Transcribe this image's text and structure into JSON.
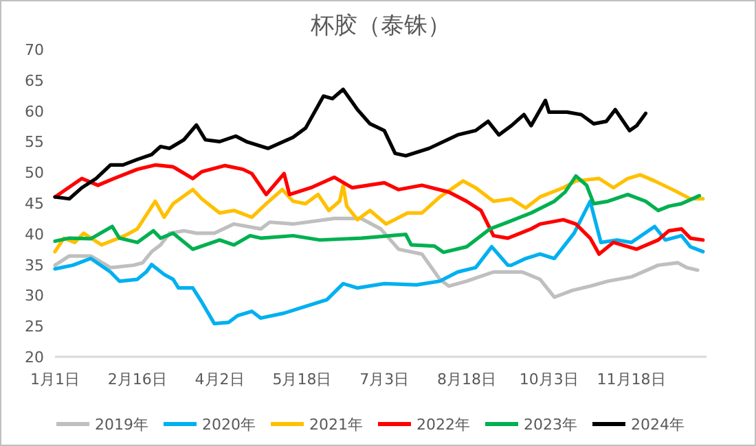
{
  "chart_data": {
    "type": "line",
    "title": "杯胶（泰铢）",
    "xlim": [
      "--01-01",
      "--12-30"
    ],
    "ylim": [
      20,
      70
    ],
    "xticks": [
      {
        "value": "--01-01",
        "label": "1月1日"
      },
      {
        "value": "--02-16",
        "label": "2月16日"
      },
      {
        "value": "--04-02",
        "label": "4月2日"
      },
      {
        "value": "--05-18",
        "label": "5月18日"
      },
      {
        "value": "--07-03",
        "label": "7月3日"
      },
      {
        "value": "--08-18",
        "label": "8月18日"
      },
      {
        "value": "--10-03",
        "label": "10月3日"
      },
      {
        "value": "--11-18",
        "label": "11月18日"
      }
    ],
    "yticks": [
      20,
      25,
      30,
      35,
      40,
      45,
      50,
      55,
      60,
      65,
      70
    ],
    "grid": false,
    "legend": "bottom",
    "marker": "none",
    "line_style": "solid",
    "series": [
      {
        "name": "2019年",
        "color": "#bfbfbf",
        "x": [
          "--01-01",
          "--01-09",
          "--01-21",
          "--02-01",
          "--02-14",
          "--02-19",
          "--02-24",
          "--02-29",
          "--03-05",
          "--03-13",
          "--03-20",
          "--03-30",
          "--04-10",
          "--04-25",
          "--04-30",
          "--05-13",
          "--06-05",
          "--06-20",
          "--07-01",
          "--07-11",
          "--07-24",
          "--08-03",
          "--08-08",
          "--08-18",
          "--09-02",
          "--09-18",
          "--09-28",
          "--10-06",
          "--10-16",
          "--10-26",
          "--11-05",
          "--11-18",
          "--12-03",
          "--12-14",
          "--12-19",
          "--12-25"
        ],
        "values": [
          34.9,
          36.4,
          36.4,
          34.5,
          34.9,
          35.3,
          37.1,
          38.2,
          40.1,
          40.5,
          40.1,
          40.1,
          41.6,
          40.8,
          41.9,
          41.6,
          42.5,
          42.5,
          40.8,
          37.5,
          36.7,
          32.6,
          31.5,
          32.3,
          33.8,
          33.8,
          32.6,
          29.7,
          30.8,
          31.5,
          32.3,
          33,
          34.9,
          35.3,
          34.5,
          34.1
        ]
      },
      {
        "name": "2020年",
        "color": "#00b0f0",
        "x": [
          "--01-01",
          "--01-11",
          "--01-21",
          "--02-01",
          "--02-06",
          "--02-16",
          "--02-21",
          "--02-24",
          "--03-02",
          "--03-07",
          "--03-10",
          "--03-18",
          "--03-23",
          "--03-30",
          "--04-07",
          "--04-12",
          "--04-20",
          "--04-25",
          "--05-08",
          "--05-20",
          "--06-01",
          "--06-10",
          "--06-18",
          "--07-03",
          "--07-21",
          "--08-03",
          "--08-13",
          "--08-23",
          "--09-01",
          "--09-10",
          "--09-12",
          "--09-20",
          "--09-28",
          "--10-06",
          "--10-17",
          "--10-26",
          "--11-01",
          "--11-10",
          "--11-18",
          "--12-01",
          "--12-07",
          "--12-16",
          "--12-21",
          "--12-28"
        ],
        "values": [
          34.3,
          34.9,
          36,
          33.8,
          32.3,
          32.6,
          33.8,
          35,
          33.4,
          32.6,
          31.2,
          31.2,
          28.9,
          25.4,
          25.6,
          26.7,
          27.4,
          26.3,
          27.1,
          28.2,
          29.3,
          31.9,
          31.2,
          31.9,
          31.7,
          32.3,
          33.8,
          34.5,
          37.9,
          34.9,
          34.9,
          36,
          36.7,
          36,
          40.1,
          45.3,
          38.6,
          39,
          38.6,
          41.2,
          39,
          39.7,
          37.9,
          37.1
        ]
      },
      {
        "name": "2021年",
        "color": "#ffc000",
        "x": [
          "--01-01",
          "--01-06",
          "--01-12",
          "--01-17",
          "--01-27",
          "--02-09",
          "--02-16",
          "--02-26",
          "--03-02",
          "--03-07",
          "--03-18",
          "--03-23",
          "--04-02",
          "--04-10",
          "--04-20",
          "--04-28",
          "--05-07",
          "--05-13",
          "--05-20",
          "--05-27",
          "--06-02",
          "--06-08",
          "--06-10",
          "--06-12",
          "--06-18",
          "--06-25",
          "--07-04",
          "--07-16",
          "--07-24",
          "--08-03",
          "--08-16",
          "--08-23",
          "--09-02",
          "--09-12",
          "--09-20",
          "--09-28",
          "--10-11",
          "--10-18",
          "--10-31",
          "--11-08",
          "--11-16",
          "--11-23",
          "--12-01",
          "--12-11",
          "--12-21",
          "--12-28"
        ],
        "values": [
          37.1,
          39.3,
          38.6,
          40.1,
          38.2,
          39.7,
          40.8,
          45.3,
          42.7,
          44.9,
          47.2,
          45.7,
          43.4,
          43.8,
          42.7,
          44.9,
          47.2,
          45.3,
          44.9,
          46.4,
          43.8,
          45.3,
          47.9,
          44.5,
          42.3,
          43.8,
          41.6,
          43.4,
          43.4,
          46,
          48.6,
          47.5,
          45.3,
          45.7,
          44.2,
          46,
          47.5,
          48.6,
          49,
          47.5,
          49,
          49.6,
          48.6,
          47.2,
          45.7,
          45.7
        ]
      },
      {
        "name": "2022年",
        "color": "#ff0000",
        "x": [
          "--01-01",
          "--01-16",
          "--01-25",
          "--02-03",
          "--02-16",
          "--02-26",
          "--03-07",
          "--03-18",
          "--03-23",
          "--04-05",
          "--04-15",
          "--04-20",
          "--04-28",
          "--05-08",
          "--05-11",
          "--05-23",
          "--06-05",
          "--06-15",
          "--07-03",
          "--07-11",
          "--07-24",
          "--08-08",
          "--08-18",
          "--08-26",
          "--09-02",
          "--09-10",
          "--09-23",
          "--09-28",
          "--10-11",
          "--10-18",
          "--10-26",
          "--10-31",
          "--11-08",
          "--11-21",
          "--12-03",
          "--12-09",
          "--12-16",
          "--12-21",
          "--12-28"
        ],
        "values": [
          46,
          49,
          47.9,
          49,
          50.5,
          51.2,
          50.9,
          49,
          50.1,
          51.1,
          50.5,
          49.8,
          46.4,
          49.8,
          46.4,
          47.5,
          49.2,
          47.5,
          48.3,
          47.2,
          47.9,
          46.8,
          45.3,
          43.8,
          39.7,
          39.3,
          40.8,
          41.6,
          42.3,
          41.6,
          39.3,
          36.7,
          38.6,
          37.5,
          39,
          40.5,
          40.8,
          39.3,
          39
        ]
      },
      {
        "name": "2023年",
        "color": "#00b050",
        "x": [
          "--01-01",
          "--01-09",
          "--01-21",
          "--02-02",
          "--02-06",
          "--02-16",
          "--02-25",
          "--02-29",
          "--03-07",
          "--03-18",
          "--04-02",
          "--04-10",
          "--04-19",
          "--04-25",
          "--05-13",
          "--05-28",
          "--06-20",
          "--07-15",
          "--07-18",
          "--07-31",
          "--08-05",
          "--08-18",
          "--08-31",
          "--09-10",
          "--09-23",
          "--10-06",
          "--10-12",
          "--10-18",
          "--10-24",
          "--10-28",
          "--11-05",
          "--11-16",
          "--11-26",
          "--12-03",
          "--12-09",
          "--12-16",
          "--12-26"
        ],
        "values": [
          38.8,
          39.3,
          39.2,
          41.2,
          39.3,
          38.6,
          40.5,
          39.3,
          40.1,
          37.5,
          39,
          38.2,
          39.7,
          39.3,
          39.7,
          39,
          39.3,
          39.9,
          38.2,
          38,
          37,
          37.9,
          40.8,
          41.9,
          43.4,
          45.3,
          46.8,
          49.4,
          47.9,
          44.9,
          45.3,
          46.4,
          45.3,
          43.8,
          44.5,
          44.9,
          46.2
        ]
      },
      {
        "name": "2024年",
        "color": "#000000",
        "x": [
          "--01-01",
          "--01-09",
          "--01-16",
          "--01-24",
          "--02-01",
          "--02-08",
          "--02-16",
          "--02-24",
          "--02-29",
          "--03-05",
          "--03-13",
          "--03-20",
          "--03-25",
          "--04-02",
          "--04-11",
          "--04-17",
          "--04-29",
          "--05-13",
          "--05-20",
          "--05-30",
          "--06-04",
          "--06-10",
          "--06-18",
          "--06-25",
          "--07-03",
          "--07-09",
          "--07-15",
          "--07-28",
          "--08-13",
          "--08-23",
          "--08-30",
          "--09-05",
          "--09-12",
          "--09-19",
          "--09-23",
          "--10-01",
          "--10-03",
          "--10-13",
          "--10-21",
          "--10-28",
          "--11-04",
          "--11-09",
          "--11-17",
          "--11-21",
          "--11-26"
        ],
        "values": [
          46,
          45.7,
          47.5,
          49,
          51.2,
          51.2,
          52.1,
          52.9,
          54.2,
          53.9,
          55.3,
          57.7,
          55.3,
          55,
          55.9,
          55,
          53.9,
          55.7,
          57.2,
          62.4,
          62,
          63.5,
          60.2,
          57.9,
          56.8,
          53.1,
          52.7,
          53.9,
          56.1,
          56.8,
          58.3,
          56.1,
          57.6,
          59.4,
          57.6,
          61.7,
          59.8,
          59.8,
          59.4,
          57.9,
          58.3,
          60.2,
          56.8,
          57.6,
          59.6
        ]
      }
    ]
  }
}
